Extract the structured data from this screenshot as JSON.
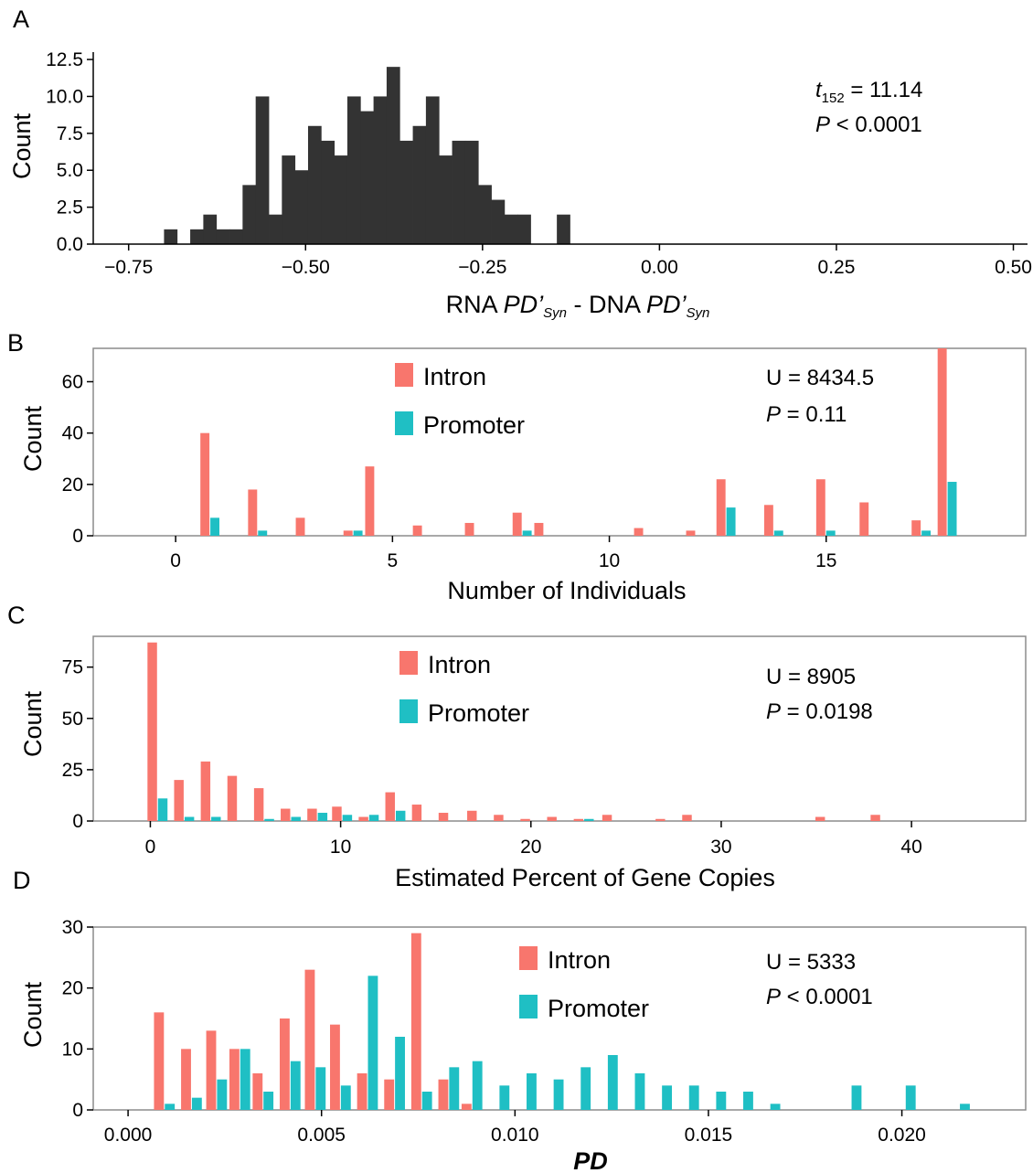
{
  "colors": {
    "bar_dark": "#333333",
    "intron": "#F8766D",
    "promoter": "#1FBFC4",
    "frame": "#8c8c8c",
    "axis_line": "#000000"
  },
  "chart_data": [
    {
      "panel": "A",
      "type": "bar",
      "ylabel": "Count",
      "xlabel_parts": {
        "main1": "RNA ",
        "pd1": "PD’",
        "sub1": "Syn",
        "mid": " - DNA ",
        "pd2": "PD’",
        "sub2": "Syn"
      },
      "xlim": [
        -0.8,
        0.52
      ],
      "ylim": [
        0,
        13
      ],
      "x_ticks": [
        -0.75,
        -0.5,
        -0.25,
        0.0,
        0.25,
        0.5
      ],
      "x_tick_labels": [
        "−0.75",
        "−0.50",
        "−0.25",
        "0.00",
        "0.25",
        "0.50"
      ],
      "y_ticks": [
        0,
        2.5,
        5,
        7.5,
        10,
        12.5
      ],
      "y_tick_labels": [
        "0.0",
        "2.5",
        "5.0",
        "7.5",
        "10.0",
        "12.5"
      ],
      "bin_start": -0.7,
      "bin_width": 0.0185,
      "values": [
        1,
        0,
        1,
        2,
        1,
        1,
        4,
        10,
        2,
        6,
        5,
        8,
        7,
        6,
        10,
        9,
        10,
        12,
        7,
        8,
        10,
        6,
        7,
        7,
        4,
        3,
        2,
        2,
        0,
        0,
        2
      ],
      "stat_parts": {
        "t": "t",
        "t_sub": "152",
        "t_rest": " = 11.14",
        "p": "P",
        "p_rest": " < 0.0001"
      }
    },
    {
      "panel": "B",
      "type": "bar",
      "ylabel": "Count",
      "xlabel": "Number of Individuals",
      "xlim": [
        -1.9,
        19.6
      ],
      "ylim": [
        0,
        73
      ],
      "x_ticks": [
        0,
        5,
        10,
        15
      ],
      "x_tick_labels": [
        "0",
        "5",
        "10",
        "15"
      ],
      "y_ticks": [
        0,
        20,
        40,
        60
      ],
      "y_tick_labels": [
        "0",
        "20",
        "40",
        "60"
      ],
      "bar_width": 0.23,
      "categories": [
        0.8,
        1.9,
        3.0,
        4.1,
        4.6,
        5.7,
        6.9,
        8.0,
        8.5,
        10.8,
        12.0,
        12.7,
        13.8,
        15.0,
        16.0,
        17.2,
        17.8
      ],
      "series": [
        {
          "name": "Intron",
          "values": [
            40,
            18,
            7,
            2,
            27,
            4,
            5,
            9,
            5,
            3,
            2,
            22,
            12,
            22,
            13,
            6,
            73
          ]
        },
        {
          "name": "Promoter",
          "values": [
            7,
            2,
            0,
            2,
            0,
            0,
            0,
            2,
            0,
            0,
            0,
            11,
            2,
            2,
            0,
            2,
            21
          ]
        }
      ],
      "stat_parts": {
        "u": "U = 8434.5",
        "p": "P",
        "p_rest": " = 0.11"
      }
    },
    {
      "panel": "C",
      "type": "bar",
      "ylabel": "Count",
      "xlabel": "Estimated Percent of Gene Copies",
      "xlim": [
        -3,
        46
      ],
      "ylim": [
        0,
        90
      ],
      "x_ticks": [
        0,
        10,
        20,
        30,
        40
      ],
      "x_tick_labels": [
        "0",
        "10",
        "20",
        "30",
        "40"
      ],
      "y_ticks": [
        0,
        25,
        50,
        75
      ],
      "y_tick_labels": [
        "0",
        "25",
        "50",
        "75"
      ],
      "bar_width": 0.55,
      "categories": [
        0.4,
        1.8,
        3.2,
        4.6,
        6.0,
        7.4,
        8.8,
        10.1,
        11.5,
        12.9,
        14.3,
        15.7,
        17.2,
        18.6,
        20.0,
        21.4,
        22.8,
        24.3,
        27.1,
        28.5,
        35.5,
        38.4
      ],
      "series": [
        {
          "name": "Intron",
          "values": [
            87,
            20,
            29,
            22,
            16,
            6,
            6,
            7,
            2,
            14,
            8,
            4,
            5,
            3,
            1,
            2,
            1,
            3,
            1,
            3,
            2,
            3
          ]
        },
        {
          "name": "Promoter",
          "values": [
            11,
            2,
            2,
            0,
            1,
            2,
            4,
            3,
            3,
            5,
            0,
            0,
            0,
            0,
            0,
            0,
            1,
            0,
            0,
            0,
            0,
            0
          ]
        }
      ],
      "stat_parts": {
        "u": "U = 8905",
        "p": "P",
        "p_rest": " = 0.0198"
      }
    },
    {
      "panel": "D",
      "type": "bar",
      "ylabel": "Count",
      "xlabel": "PD",
      "xlim": [
        -0.0009,
        0.0232
      ],
      "ylim": [
        0,
        30
      ],
      "x_ticks": [
        0,
        0.005,
        0.01,
        0.015,
        0.02
      ],
      "x_tick_labels": [
        "0.000",
        "0.005",
        "0.010",
        "0.015",
        "0.020"
      ],
      "y_ticks": [
        0,
        10,
        20,
        30
      ],
      "y_tick_labels": [
        "0",
        "10",
        "20",
        "30"
      ],
      "bar_width": 0.00028,
      "categories": [
        0.00095,
        0.00165,
        0.0023,
        0.0029,
        0.0035,
        0.0042,
        0.00485,
        0.0055,
        0.0062,
        0.0069,
        0.0076,
        0.0083,
        0.0089,
        0.0096,
        0.0103,
        0.011,
        0.0117,
        0.0124,
        0.0131,
        0.0138,
        0.0145,
        0.0152,
        0.0159,
        0.0166,
        0.0187,
        0.0201,
        0.0215
      ],
      "series": [
        {
          "name": "Intron",
          "values": [
            16,
            10,
            13,
            10,
            6,
            15,
            23,
            14,
            6,
            5,
            29,
            5,
            1,
            0,
            0,
            0,
            0,
            0,
            0,
            0,
            0,
            0,
            0,
            0,
            0,
            0,
            0
          ]
        },
        {
          "name": "Promoter",
          "values": [
            1,
            2,
            5,
            10,
            3,
            8,
            7,
            4,
            22,
            12,
            3,
            7,
            8,
            4,
            6,
            5,
            7,
            9,
            6,
            4,
            4,
            3,
            3,
            1,
            4,
            4,
            1
          ]
        }
      ],
      "stat_parts": {
        "u": "U = 5333",
        "p": "P",
        "p_rest": " < 0.0001"
      }
    }
  ]
}
